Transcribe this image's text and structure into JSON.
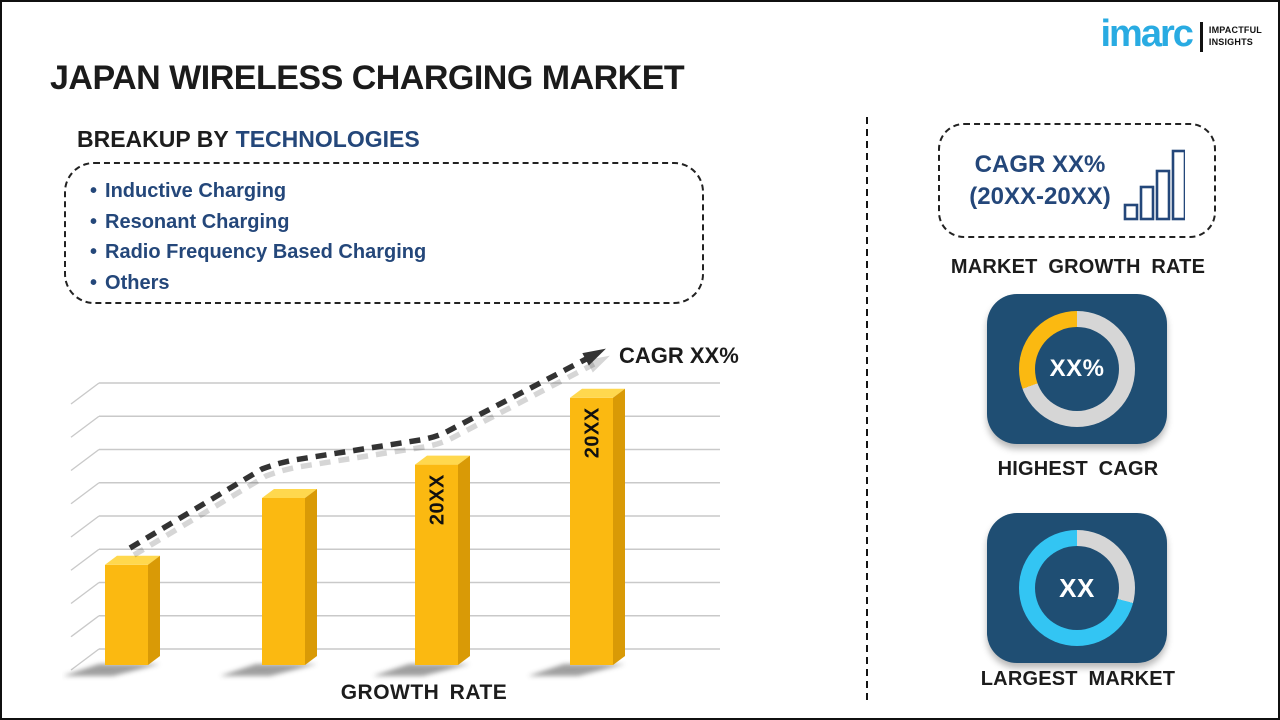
{
  "page": {
    "title": "JAPAN WIRELESS CHARGING MARKET"
  },
  "logo": {
    "brand": "imarc",
    "tagline_line1": "IMPACTFUL",
    "tagline_line2": "INSIGHTS"
  },
  "breakup": {
    "heading_prefix": "BREAKUP BY",
    "heading_highlight": "TECHNOLOGIES",
    "bullet": "•",
    "items": [
      {
        "label": "Inductive Charging"
      },
      {
        "label": "Resonant Charging"
      },
      {
        "label": "Radio Frequency Based Charging"
      },
      {
        "label": "Others"
      }
    ]
  },
  "chart_data": {
    "type": "bar",
    "title": "",
    "xlabel": "GROWTH RATE",
    "ylabel": "",
    "categories": [
      "",
      "",
      "20XX",
      "20XX"
    ],
    "values": [
      3,
      5,
      6,
      8
    ],
    "value_unit": "gridline units (no numeric axis labels shown)",
    "gridlines": 9,
    "grid": true,
    "legend_position": "none",
    "bar_colors": {
      "front": "#FBB911",
      "top": "#FFD84E",
      "side": "#D99A06"
    },
    "trend": {
      "label": "CAGR XX%",
      "style": "dashed-arrow",
      "direction": "increasing"
    }
  },
  "right_panel": {
    "growth_box": {
      "line1": "CAGR XX%",
      "line2": "(20XX-20XX)"
    },
    "growth_label": "MARKET GROWTH RATE",
    "highest_cagr": {
      "value": "XX%",
      "label": "HIGHEST CAGR",
      "ring": {
        "base_color": "#D6D6D6",
        "accent_color": "#FBB911",
        "accent_start_deg": 250,
        "accent_end_deg": 360
      }
    },
    "largest_market": {
      "value": "XX",
      "label": "LARGEST MARKET",
      "ring": {
        "base_color": "#D6D6D6",
        "accent_color": "#33C5F3",
        "accent_start_deg": 105,
        "accent_end_deg": 360
      }
    }
  },
  "colors": {
    "card_navy": "#1F4E73",
    "text_navy": "#24477A",
    "brand_cyan": "#29ABE2",
    "text_dark": "#1B1B1B",
    "ring_gray": "#D6D6D6",
    "arrow_dark": "#333333"
  }
}
